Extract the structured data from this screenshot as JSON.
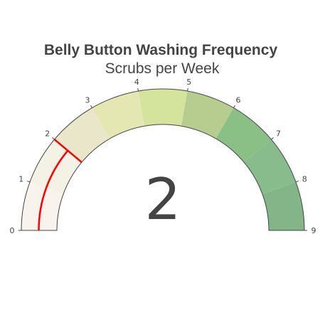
{
  "chart_data": {
    "type": "gauge",
    "title": "Belly Button Washing Frequency",
    "subtitle": "Scrubs per Week",
    "value": 2,
    "value_text": "2",
    "range": [
      0,
      9
    ],
    "ticks": [
      {
        "value": 0,
        "label": "0"
      },
      {
        "value": 1,
        "label": "1"
      },
      {
        "value": 2,
        "label": "2"
      },
      {
        "value": 3,
        "label": "3"
      },
      {
        "value": 4,
        "label": "4"
      },
      {
        "value": 5,
        "label": "5"
      },
      {
        "value": 6,
        "label": "6"
      },
      {
        "value": 7,
        "label": "7"
      },
      {
        "value": 8,
        "label": "8"
      },
      {
        "value": 9,
        "label": "9"
      }
    ],
    "steps": [
      {
        "range": [
          0,
          1
        ],
        "color": "#f8f3ec"
      },
      {
        "range": [
          1,
          2
        ],
        "color": "#f4f1e5"
      },
      {
        "range": [
          2,
          3
        ],
        "color": "#e9e6ca"
      },
      {
        "range": [
          3,
          4
        ],
        "color": "#e5e7b3"
      },
      {
        "range": [
          4,
          5
        ],
        "color": "#d5e49d"
      },
      {
        "range": [
          5,
          6
        ],
        "color": "#b7cd8f"
      },
      {
        "range": [
          6,
          7
        ],
        "color": "#8ac086"
      },
      {
        "range": [
          7,
          8
        ],
        "color": "#89bc8d"
      },
      {
        "range": [
          8,
          9
        ],
        "color": "#84b589"
      }
    ],
    "threshold_color": "#ff0000",
    "bar_color": "#ff0000"
  }
}
